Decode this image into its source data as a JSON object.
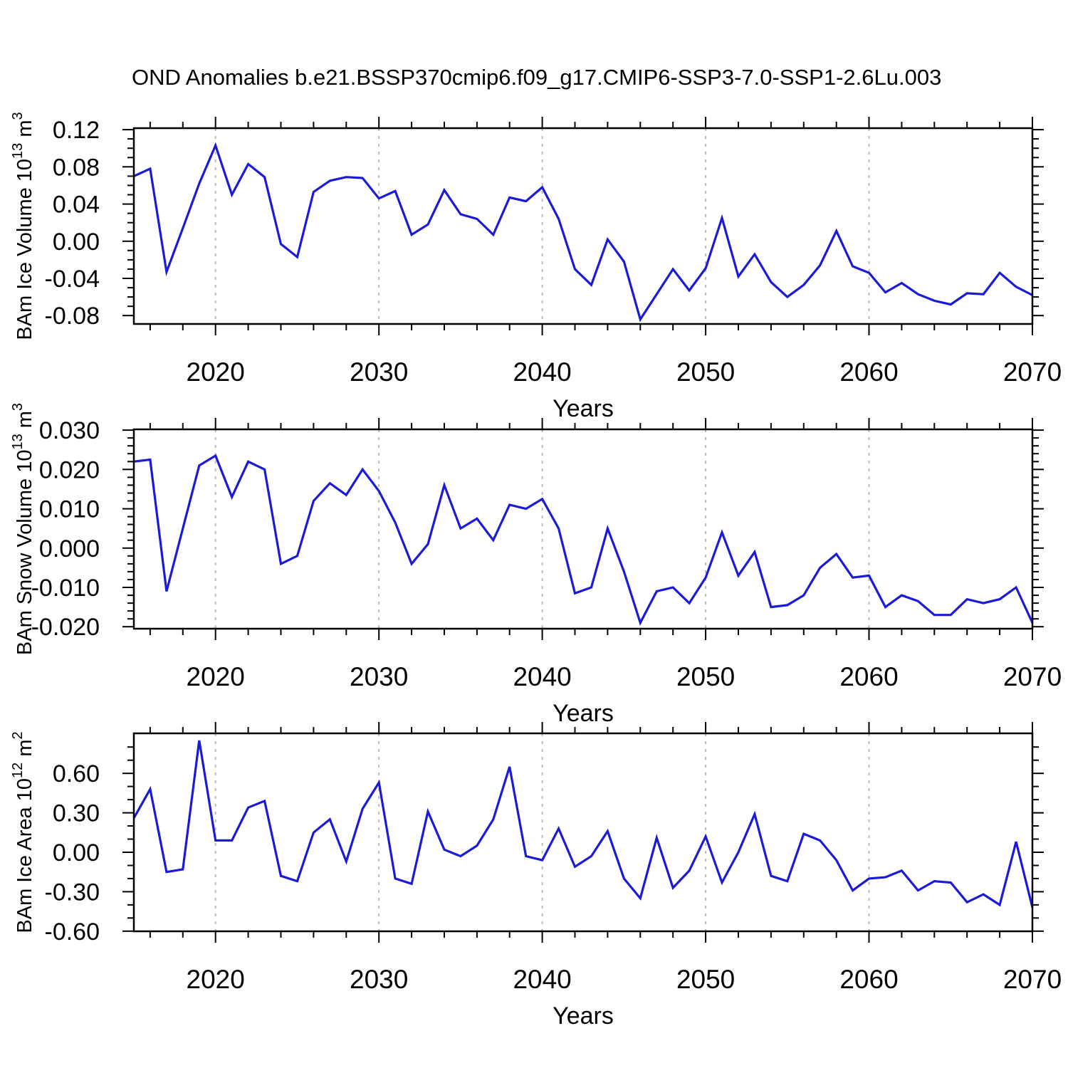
{
  "title": "OND Anomalies b.e21.BSSP370cmip6.f09_g17.CMIP6-SSP3-7.0-SSP1-2.6Lu.003",
  "colors": {
    "line": "#1a1ad8",
    "grid": "#b3b3b3",
    "axis": "#000000",
    "background": "#ffffff",
    "text": "#000000"
  },
  "x_axis": {
    "label": "Years",
    "range": [
      2015,
      2070
    ],
    "major_ticks": [
      2020,
      2030,
      2040,
      2050,
      2060,
      2070
    ],
    "major_tick_labels": [
      "2020",
      "2030",
      "2040",
      "2050",
      "2060",
      "2070"
    ],
    "minor_step": 2,
    "gridlines": [
      2020,
      2030,
      2040,
      2050,
      2060
    ],
    "years": [
      2015,
      2016,
      2017,
      2018,
      2019,
      2020,
      2021,
      2022,
      2023,
      2024,
      2025,
      2026,
      2027,
      2028,
      2029,
      2030,
      2031,
      2032,
      2033,
      2034,
      2035,
      2036,
      2037,
      2038,
      2039,
      2040,
      2041,
      2042,
      2043,
      2044,
      2045,
      2046,
      2047,
      2048,
      2049,
      2050,
      2051,
      2052,
      2053,
      2054,
      2055,
      2056,
      2057,
      2058,
      2059,
      2060,
      2061,
      2062,
      2063,
      2064,
      2065,
      2066,
      2067,
      2068,
      2069,
      2070
    ]
  },
  "chart_data": [
    {
      "type": "line",
      "name": "ice-volume",
      "ylabel": "BAm Ice Volume 10^13 m^3",
      "ylabel_parts": [
        [
          "t",
          "BAm Ice Volume 10"
        ],
        [
          "s",
          "13"
        ],
        [
          "t",
          " m"
        ],
        [
          "s",
          "3"
        ]
      ],
      "xlabel": "Years",
      "ylim": [
        -0.089,
        0.1216
      ],
      "yticks": [
        0.12,
        0.08,
        0.04,
        0.0,
        -0.04,
        -0.08
      ],
      "ytick_labels": [
        "0.12",
        "0.08",
        "0.04",
        "0.00",
        "-0.04",
        "-0.08"
      ],
      "ymajor_step": 0.04,
      "yminor_step": 0.01,
      "grid": true,
      "legend": "none",
      "values": [
        0.07,
        0.078,
        -0.033,
        0.014,
        0.062,
        0.103,
        0.05,
        0.083,
        0.069,
        -0.003,
        -0.017,
        0.053,
        0.065,
        0.069,
        0.068,
        0.046,
        0.054,
        0.007,
        0.018,
        0.055,
        0.029,
        0.024,
        0.007,
        0.047,
        0.043,
        0.058,
        0.024,
        -0.03,
        -0.047,
        0.002,
        -0.022,
        -0.084,
        -0.057,
        -0.03,
        -0.053,
        -0.029,
        0.025,
        -0.038,
        -0.014,
        -0.044,
        -0.06,
        -0.047,
        -0.026,
        0.011,
        -0.027,
        -0.034,
        -0.055,
        -0.045,
        -0.057,
        -0.064,
        -0.068,
        -0.056,
        -0.057,
        -0.034,
        -0.049,
        -0.058
      ]
    },
    {
      "type": "line",
      "name": "snow-volume",
      "ylabel": "BAm Snow Volume 10^13 m^3",
      "ylabel_parts": [
        [
          "t",
          "BAm Snow Volume 10"
        ],
        [
          "s",
          "13"
        ],
        [
          "t",
          " m"
        ],
        [
          "s",
          "3"
        ]
      ],
      "xlabel": "Years",
      "ylim": [
        -0.0205,
        0.0302
      ],
      "yticks": [
        0.03,
        0.02,
        0.01,
        0.0,
        -0.01,
        -0.02
      ],
      "ytick_labels": [
        "0.030",
        "0.020",
        "0.010",
        "0.000",
        "-0.010",
        "-0.020"
      ],
      "ymajor_step": 0.01,
      "yminor_step": 0.002,
      "grid": true,
      "legend": "none",
      "values": [
        0.022,
        0.0225,
        -0.011,
        0.005,
        0.021,
        0.0235,
        0.013,
        0.022,
        0.02,
        -0.004,
        -0.002,
        0.012,
        0.0165,
        0.0135,
        0.02,
        0.0145,
        0.0065,
        -0.004,
        0.001,
        0.016,
        0.005,
        0.0075,
        0.002,
        0.011,
        0.01,
        0.0125,
        0.005,
        -0.0115,
        -0.01,
        0.005,
        -0.006,
        -0.019,
        -0.011,
        -0.01,
        -0.014,
        -0.0075,
        0.004,
        -0.007,
        -0.001,
        -0.015,
        -0.0145,
        -0.012,
        -0.005,
        -0.0015,
        -0.0075,
        -0.007,
        -0.015,
        -0.012,
        -0.0135,
        -0.017,
        -0.017,
        -0.013,
        -0.014,
        -0.013,
        -0.01,
        -0.019
      ]
    },
    {
      "type": "line",
      "name": "ice-area",
      "ylabel": "BAm Ice Area 10^12 m^2",
      "ylabel_parts": [
        [
          "t",
          "BAm Ice Area 10"
        ],
        [
          "s",
          "12"
        ],
        [
          "t",
          " m"
        ],
        [
          "s",
          "2"
        ]
      ],
      "xlabel": "Years",
      "ylim": [
        -0.601,
        0.904
      ],
      "yticks": [
        0.6,
        0.3,
        0.0,
        -0.3,
        -0.6
      ],
      "ytick_labels": [
        "0.60",
        "0.30",
        "0.00",
        "-0.30",
        "-0.60"
      ],
      "ymajor_step": 0.3,
      "yminor_step": 0.1,
      "grid": true,
      "legend": "none",
      "values": [
        0.26,
        0.48,
        -0.15,
        -0.13,
        0.85,
        0.09,
        0.09,
        0.34,
        0.39,
        -0.18,
        -0.22,
        0.15,
        0.25,
        -0.07,
        0.33,
        0.53,
        -0.2,
        -0.24,
        0.31,
        0.02,
        -0.03,
        0.05,
        0.25,
        0.65,
        -0.03,
        -0.06,
        0.18,
        -0.11,
        -0.03,
        0.16,
        -0.2,
        -0.35,
        0.11,
        -0.27,
        -0.14,
        0.12,
        -0.23,
        0.0,
        0.29,
        -0.18,
        -0.22,
        0.14,
        0.09,
        -0.06,
        -0.29,
        -0.2,
        -0.19,
        -0.14,
        -0.29,
        -0.22,
        -0.23,
        -0.38,
        -0.32,
        -0.4,
        0.08,
        -0.42
      ]
    }
  ]
}
